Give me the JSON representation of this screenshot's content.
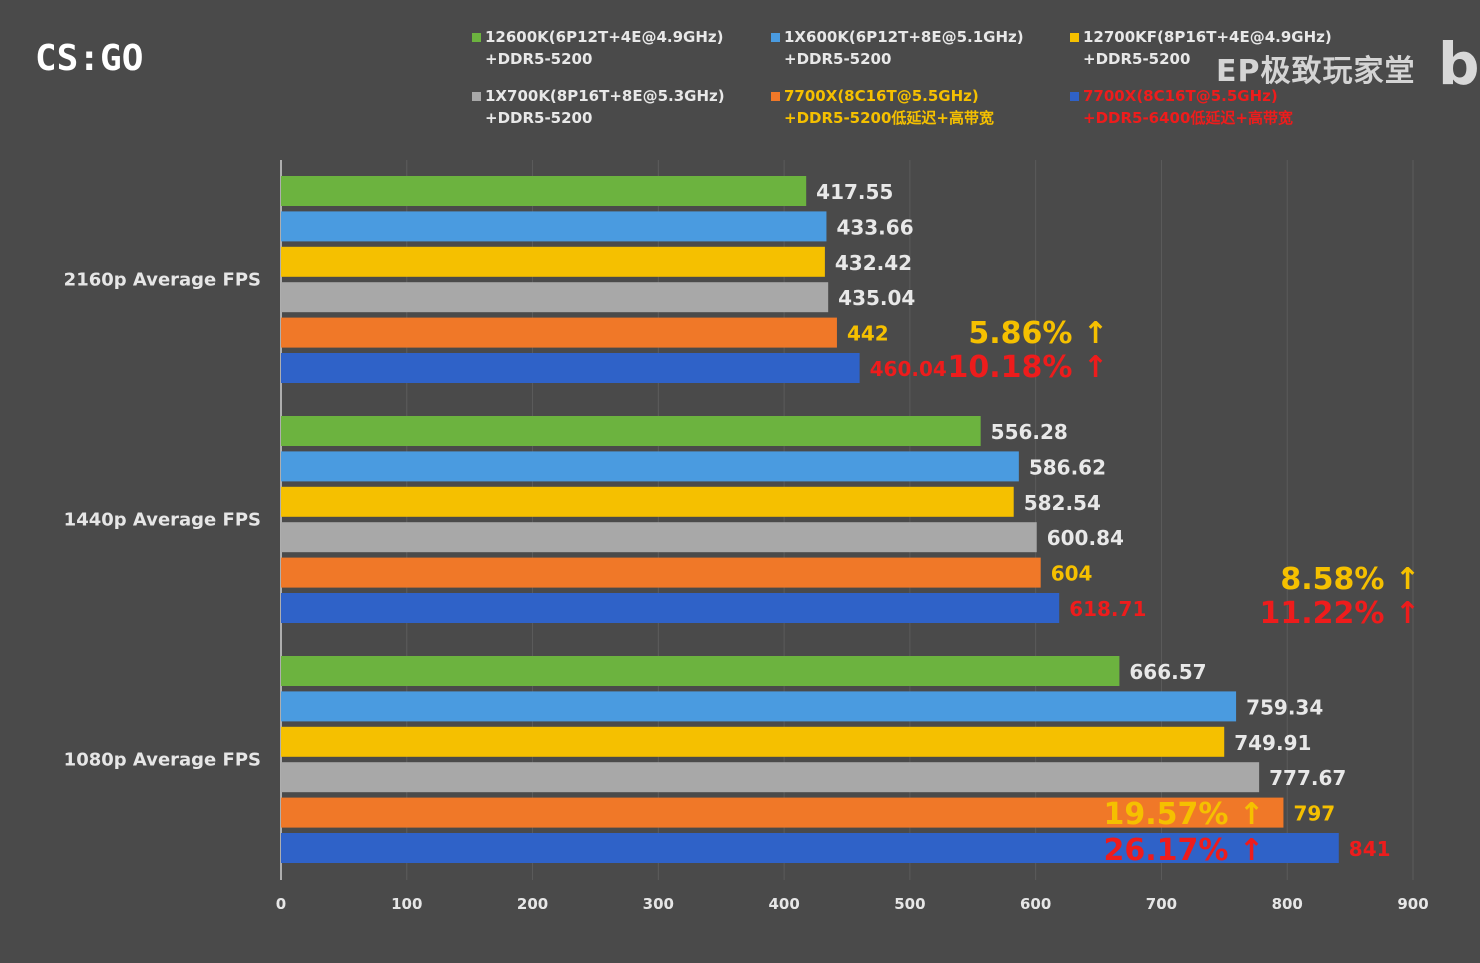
{
  "title": "CS:GO",
  "watermark": "EP极致玩家堂",
  "watermark_logo": "bi",
  "legend": [
    {
      "line1": "12600K(6P12T+4E@4.9GHz)",
      "line2": "+DDR5-5200",
      "color": "#6cb33f",
      "text_color": "#e8e8e8"
    },
    {
      "line1": "1X600K(6P12T+8E@5.1GHz)",
      "line2": "+DDR5-5200",
      "color": "#4a9be0",
      "text_color": "#e8e8e8"
    },
    {
      "line1": "12700KF(8P16T+4E@4.9GHz)",
      "line2": "+DDR5-5200",
      "color": "#f5c000",
      "text_color": "#e8e8e8"
    },
    {
      "line1": "1X700K(8P16T+8E@5.3GHz)",
      "line2": "+DDR5-5200",
      "color": "#a8a8a8",
      "text_color": "#e8e8e8"
    },
    {
      "line1": "7700X(8C16T@5.5GHz)",
      "line2": "+DDR5-5200低延迟+高带宽",
      "color": "#f07828",
      "text_color": "#f5c000"
    },
    {
      "line1": "7700X(8C16T@5.5GHz)",
      "line2": "+DDR5-6400低延迟+高带宽",
      "color": "#2f62c8",
      "text_color": "#ee1c1c"
    }
  ],
  "chart_data": {
    "type": "bar",
    "orientation": "horizontal",
    "categories": [
      "2160p Average FPS",
      "1440p Average FPS",
      "1080p Average FPS"
    ],
    "series": [
      {
        "name": "12600K(6P12T+4E@4.9GHz) +DDR5-5200",
        "color": "#6cb33f",
        "label_color": "#e8e8e8",
        "values": [
          417.55,
          556.28,
          666.57
        ],
        "labels": [
          "417.55",
          "556.28",
          "666.57"
        ]
      },
      {
        "name": "1X600K(6P12T+8E@5.1GHz) +DDR5-5200",
        "color": "#4a9be0",
        "label_color": "#e8e8e8",
        "values": [
          433.66,
          586.62,
          759.34
        ],
        "labels": [
          "433.66",
          "586.62",
          "759.34"
        ]
      },
      {
        "name": "12700KF(8P16T+4E@4.9GHz) +DDR5-5200",
        "color": "#f5c000",
        "label_color": "#e8e8e8",
        "values": [
          432.42,
          582.54,
          749.91
        ],
        "labels": [
          "432.42",
          "582.54",
          "749.91"
        ]
      },
      {
        "name": "1X700K(8P16T+8E@5.3GHz) +DDR5-5200",
        "color": "#a8a8a8",
        "label_color": "#e8e8e8",
        "values": [
          435.04,
          600.84,
          777.67
        ],
        "labels": [
          "435.04",
          "600.84",
          "777.67"
        ]
      },
      {
        "name": "7700X(8C16T@5.5GHz) +DDR5-5200低延迟+高带宽",
        "color": "#f07828",
        "label_color": "#f5c000",
        "values": [
          442,
          604,
          797
        ],
        "labels": [
          "442",
          "604",
          "797"
        ]
      },
      {
        "name": "7700X(8C16T@5.5GHz) +DDR5-6400低延迟+高带宽",
        "color": "#2f62c8",
        "label_color": "#ee1c1c",
        "values": [
          460.04,
          618.71,
          841
        ],
        "labels": [
          "460.04",
          "618.71",
          "841"
        ]
      }
    ],
    "xlim": [
      0,
      900
    ],
    "xticks": [
      "0",
      "100",
      "200",
      "300",
      "400",
      "500",
      "600",
      "700",
      "800",
      "900"
    ],
    "grid": true,
    "annotations": [
      {
        "group": 0,
        "orange": "5.86% ↑",
        "blue": "10.18% ↑"
      },
      {
        "group": 1,
        "orange": "8.58% ↑",
        "blue": "11.22% ↑"
      },
      {
        "group": 2,
        "orange": "19.57% ↑",
        "blue": "26.17% ↑"
      }
    ]
  }
}
